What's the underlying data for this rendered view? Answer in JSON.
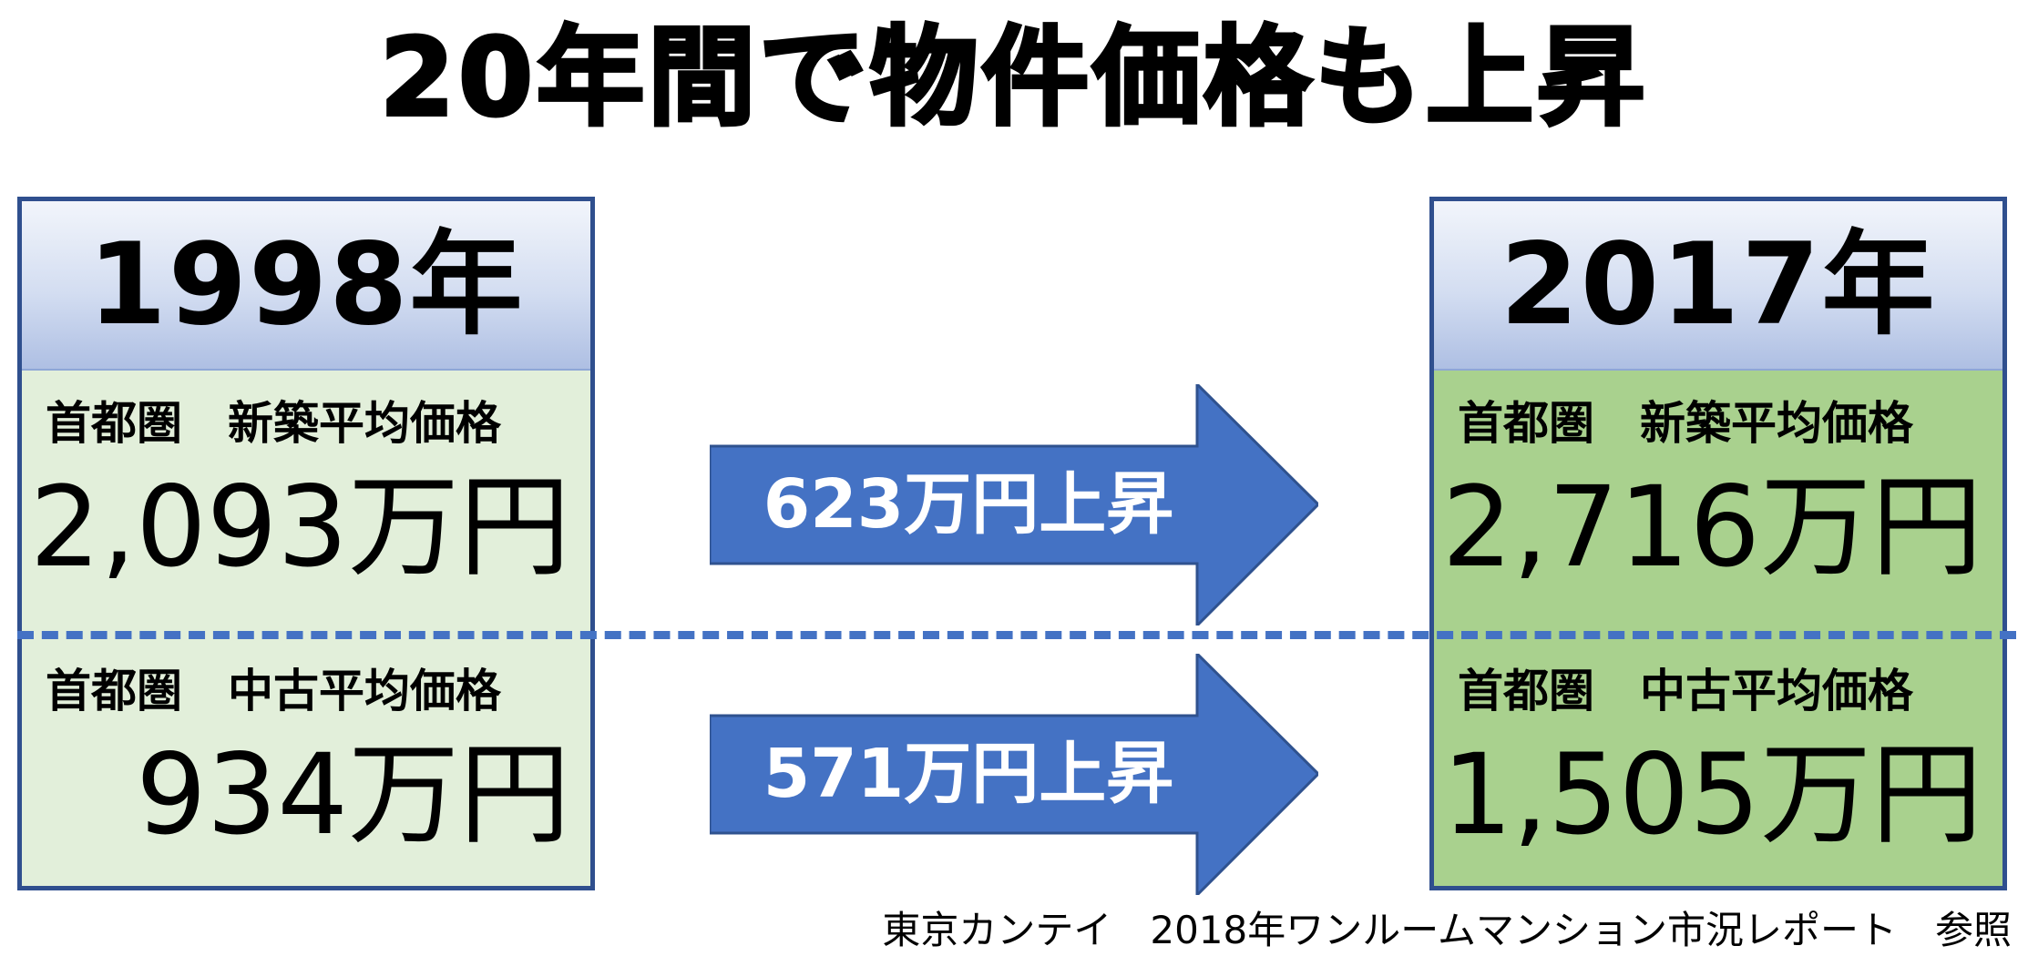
{
  "title": "20年間で物件価格も上昇",
  "panels": {
    "before": {
      "year": "1998年",
      "new_label": "首都圏　新築平均価格",
      "new_value": "2,093万円",
      "used_label": "首都圏　中古平均価格",
      "used_value": "934万円"
    },
    "after": {
      "year": "2017年",
      "new_label": "首都圏　新築平均価格",
      "new_value": "2,716万円",
      "used_label": "首都圏　中古平均価格",
      "used_value": "1,505万円"
    }
  },
  "arrows": {
    "new_increase": "623万円上昇",
    "used_increase": "571万円上昇"
  },
  "source": "東京カンテイ　2018年ワンルームマンション市況レポート　参照",
  "colors": {
    "panel_border": "#2f4f8e",
    "before_fill": "#e2efda",
    "after_fill": "#a9d18e",
    "arrow_fill": "#4472c4",
    "divider": "#4472c4"
  }
}
